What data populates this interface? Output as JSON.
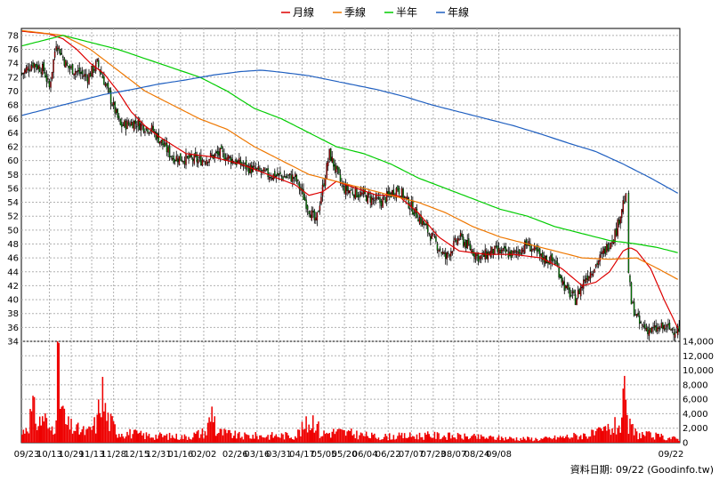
{
  "colors": {
    "background": "#ffffff",
    "grid": "#b0b0b0",
    "candle_up": "#e00000",
    "candle_down": "#00a000",
    "volume": "#ee0000",
    "month": "#dd0000",
    "season": "#ee7700",
    "half_year": "#00cc00",
    "year": "#1f5fc0"
  },
  "footer": {
    "text": "資料日期: 09/22 (Goodinfo.tw)"
  },
  "chart_data": {
    "type": "candlestick",
    "legend": [
      {
        "key": "month",
        "name": "月線"
      },
      {
        "key": "season",
        "name": "季線"
      },
      {
        "key": "half_year",
        "name": "半年"
      },
      {
        "key": "year",
        "name": "年線"
      }
    ],
    "legend_position": "top-center",
    "grid": true,
    "x_labels": [
      "09/23",
      "10/13",
      "10/29",
      "11/13",
      "11/28",
      "12/15",
      "12/31",
      "01/16",
      "02/02",
      "02/26",
      "03/16",
      "03/31",
      "04/17",
      "05/05",
      "05/20",
      "06/04",
      "06/22",
      "07/07",
      "07/23",
      "08/07",
      "08/24",
      "09/08",
      "09/22"
    ],
    "price_axis": {
      "range": [
        34,
        79
      ],
      "ticks": [
        34,
        36,
        38,
        40,
        42,
        44,
        46,
        48,
        50,
        52,
        54,
        56,
        58,
        60,
        62,
        64,
        66,
        68,
        70,
        72,
        74,
        76,
        78
      ]
    },
    "volume_axis": {
      "range": [
        0,
        14000
      ],
      "ticks": [
        0,
        2000,
        4000,
        6000,
        8000,
        10000,
        12000,
        14000
      ],
      "tick_labels": [
        "0",
        "2,000",
        "4,000",
        "6,000",
        "8,000",
        "10,000",
        "12,000",
        "14,000"
      ]
    },
    "close_waypoints": [
      [
        0,
        72.5
      ],
      [
        8,
        74
      ],
      [
        16,
        73
      ],
      [
        20,
        70.5
      ],
      [
        25,
        77
      ],
      [
        33,
        73.5
      ],
      [
        48,
        72
      ],
      [
        55,
        74
      ],
      [
        60,
        71.5
      ],
      [
        72,
        65
      ],
      [
        82,
        65.5
      ],
      [
        95,
        64.5
      ],
      [
        110,
        60.5
      ],
      [
        130,
        60
      ],
      [
        145,
        61
      ],
      [
        165,
        59
      ],
      [
        180,
        58
      ],
      [
        200,
        57.5
      ],
      [
        210,
        53
      ],
      [
        215,
        51
      ],
      [
        225,
        61
      ],
      [
        235,
        56
      ],
      [
        250,
        55
      ],
      [
        262,
        54
      ],
      [
        275,
        56
      ],
      [
        290,
        52
      ],
      [
        300,
        49
      ],
      [
        310,
        46
      ],
      [
        320,
        49
      ],
      [
        335,
        46
      ],
      [
        345,
        47
      ],
      [
        360,
        46.5
      ],
      [
        370,
        48
      ],
      [
        380,
        46
      ],
      [
        390,
        45.5
      ],
      [
        398,
        41.5
      ],
      [
        405,
        40
      ],
      [
        412,
        43
      ],
      [
        420,
        45
      ],
      [
        428,
        47.5
      ],
      [
        435,
        50
      ],
      [
        440,
        54
      ],
      [
        442,
        54.5
      ],
      [
        444,
        44
      ],
      [
        446,
        39.5
      ],
      [
        452,
        36.5
      ],
      [
        460,
        35.5
      ],
      [
        470,
        36
      ],
      [
        481,
        35.5
      ]
    ],
    "ma_month": [
      [
        0,
        78.6
      ],
      [
        20,
        78.2
      ],
      [
        30,
        77.5
      ],
      [
        40,
        76
      ],
      [
        50,
        74
      ],
      [
        60,
        72.5
      ],
      [
        70,
        70
      ],
      [
        80,
        67
      ],
      [
        90,
        65
      ],
      [
        100,
        63.5
      ],
      [
        120,
        61
      ],
      [
        140,
        60.5
      ],
      [
        160,
        59.5
      ],
      [
        180,
        58
      ],
      [
        200,
        56.5
      ],
      [
        210,
        55
      ],
      [
        220,
        55.5
      ],
      [
        230,
        57
      ],
      [
        245,
        56
      ],
      [
        260,
        55
      ],
      [
        275,
        55
      ],
      [
        290,
        52.5
      ],
      [
        305,
        49
      ],
      [
        320,
        47
      ],
      [
        340,
        46.5
      ],
      [
        360,
        46.5
      ],
      [
        380,
        46
      ],
      [
        395,
        44.5
      ],
      [
        410,
        42
      ],
      [
        420,
        42.5
      ],
      [
        430,
        44
      ],
      [
        440,
        47
      ],
      [
        445,
        47.5
      ],
      [
        450,
        47
      ],
      [
        460,
        44.5
      ],
      [
        470,
        40
      ],
      [
        481,
        35.5
      ]
    ],
    "ma_season": [
      [
        0,
        78.7
      ],
      [
        30,
        78
      ],
      [
        50,
        76
      ],
      [
        70,
        73
      ],
      [
        90,
        70
      ],
      [
        110,
        68
      ],
      [
        130,
        66
      ],
      [
        150,
        64.5
      ],
      [
        170,
        62
      ],
      [
        190,
        60
      ],
      [
        210,
        58
      ],
      [
        230,
        57
      ],
      [
        250,
        56
      ],
      [
        270,
        55
      ],
      [
        290,
        54
      ],
      [
        310,
        52.5
      ],
      [
        330,
        50.5
      ],
      [
        350,
        49
      ],
      [
        370,
        48
      ],
      [
        390,
        47
      ],
      [
        410,
        46
      ],
      [
        430,
        45.8
      ],
      [
        450,
        46
      ],
      [
        465,
        44.5
      ],
      [
        481,
        42.8
      ]
    ],
    "ma_half_year": [
      [
        0,
        76.5
      ],
      [
        20,
        77.5
      ],
      [
        30,
        78
      ],
      [
        50,
        77
      ],
      [
        70,
        76
      ],
      [
        100,
        74
      ],
      [
        130,
        72
      ],
      [
        150,
        70
      ],
      [
        170,
        67.5
      ],
      [
        190,
        66
      ],
      [
        210,
        64
      ],
      [
        230,
        62
      ],
      [
        250,
        61
      ],
      [
        270,
        59.5
      ],
      [
        290,
        57.5
      ],
      [
        310,
        56
      ],
      [
        330,
        54.5
      ],
      [
        350,
        53
      ],
      [
        370,
        52
      ],
      [
        390,
        50.5
      ],
      [
        410,
        49.5
      ],
      [
        430,
        48.5
      ],
      [
        450,
        48
      ],
      [
        465,
        47.5
      ],
      [
        481,
        46.7
      ]
    ],
    "ma_year": [
      [
        0,
        66.5
      ],
      [
        20,
        67.5
      ],
      [
        40,
        68.5
      ],
      [
        60,
        69.5
      ],
      [
        80,
        70.2
      ],
      [
        100,
        71
      ],
      [
        120,
        71.6
      ],
      [
        140,
        72.3
      ],
      [
        160,
        72.8
      ],
      [
        175,
        73
      ],
      [
        190,
        72.7
      ],
      [
        210,
        72.2
      ],
      [
        225,
        71.6
      ],
      [
        240,
        71
      ],
      [
        260,
        70.2
      ],
      [
        280,
        69.2
      ],
      [
        300,
        68
      ],
      [
        320,
        67
      ],
      [
        340,
        66
      ],
      [
        360,
        65
      ],
      [
        380,
        63.8
      ],
      [
        400,
        62.5
      ],
      [
        420,
        61.3
      ],
      [
        440,
        59.5
      ],
      [
        460,
        57.5
      ],
      [
        481,
        55.2
      ]
    ],
    "volume_waypoints": [
      [
        0,
        1200
      ],
      [
        5,
        3000
      ],
      [
        8,
        4500
      ],
      [
        12,
        2500
      ],
      [
        16,
        3800
      ],
      [
        20,
        1500
      ],
      [
        24,
        2800
      ],
      [
        26,
        11500
      ],
      [
        28,
        6000
      ],
      [
        32,
        2500
      ],
      [
        40,
        1800
      ],
      [
        48,
        1400
      ],
      [
        55,
        2800
      ],
      [
        58,
        7500
      ],
      [
        62,
        3500
      ],
      [
        70,
        1500
      ],
      [
        90,
        1000
      ],
      [
        120,
        800
      ],
      [
        135,
        1500
      ],
      [
        140,
        5000
      ],
      [
        142,
        1500
      ],
      [
        160,
        900
      ],
      [
        200,
        1000
      ],
      [
        215,
        3500
      ],
      [
        218,
        1200
      ],
      [
        230,
        1500
      ],
      [
        260,
        800
      ],
      [
        300,
        1000
      ],
      [
        340,
        700
      ],
      [
        380,
        500
      ],
      [
        420,
        1200
      ],
      [
        438,
        2500
      ],
      [
        441,
        5800
      ],
      [
        443,
        2500
      ],
      [
        450,
        1200
      ],
      [
        481,
        500
      ]
    ]
  }
}
